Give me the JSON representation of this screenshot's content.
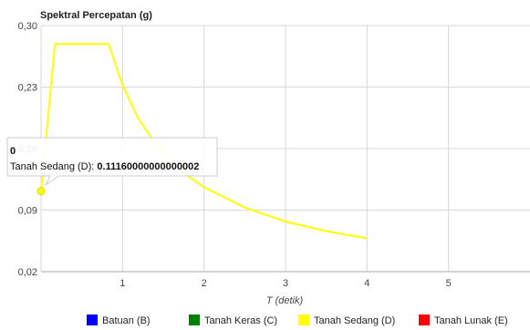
{
  "chart_data": {
    "type": "line",
    "title": "Spektral Percepatan (g)",
    "xlabel": "T (detik)",
    "ylabel": "",
    "xlim": [
      0,
      6
    ],
    "ylim": [
      0.02,
      0.3
    ],
    "x_ticks": [
      "1",
      "2",
      "3",
      "4",
      "5"
    ],
    "y_ticks": [
      "0,30",
      "0,23",
      "0,16",
      "0,09",
      "0,02"
    ],
    "grid": true,
    "legend_position": "bottom",
    "legend": [
      {
        "name": "Batuan (B)",
        "color": "#0000ff"
      },
      {
        "name": "Tanah Keras (C)",
        "color": "#008000"
      },
      {
        "name": "Tanah Sedang (D)",
        "color": "#ffff00"
      },
      {
        "name": "Tanah Lunak (E)",
        "color": "#ff0000"
      }
    ],
    "series": [
      {
        "name": "Tanah Sedang (D)",
        "color": "#ffff00",
        "x": [
          0,
          0.17,
          0.83,
          1.0,
          1.2,
          1.4,
          1.6,
          1.8,
          2.0,
          2.5,
          3.0,
          3.5,
          4.0
        ],
        "y": [
          0.1116,
          0.279,
          0.279,
          0.232,
          0.193,
          0.166,
          0.145,
          0.129,
          0.116,
          0.093,
          0.077,
          0.066,
          0.058
        ]
      }
    ],
    "tooltip": {
      "header": "0",
      "series": "Tanah Sedang (D)",
      "value": "0.11160000000000002"
    }
  }
}
